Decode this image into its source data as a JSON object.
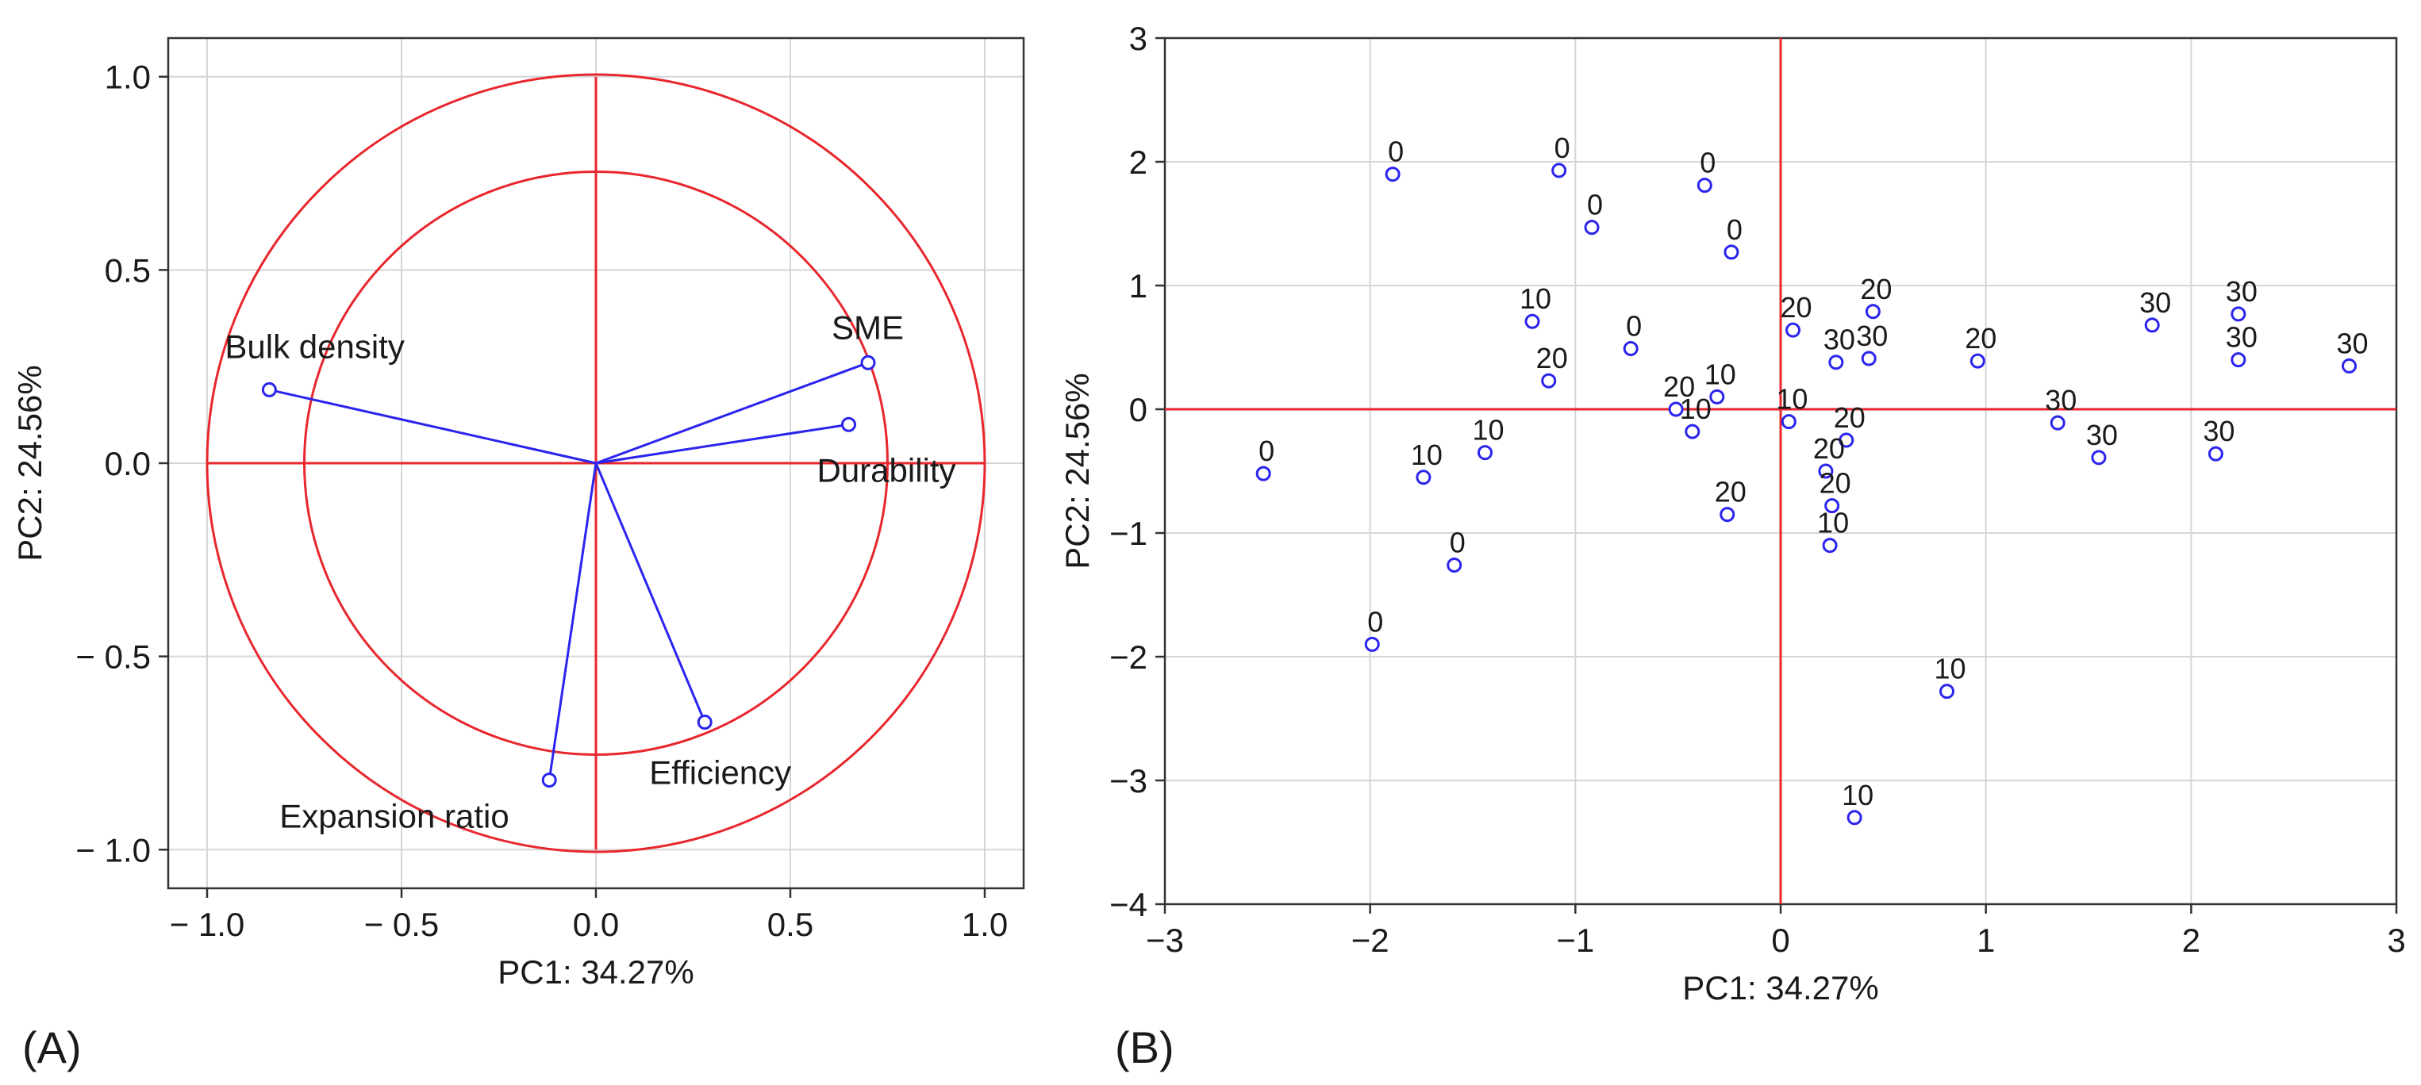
{
  "colors": {
    "reference": "#e8262d",
    "data": "#2b24ee",
    "grid": "#d6d6d6",
    "frame": "#333333"
  },
  "panel_labels": [
    "(A)",
    "(B)"
  ],
  "chart_data": [
    {
      "type": "scatter",
      "subtype": "pca-correlation-circle",
      "panel": "(A)",
      "xlabel": "PC1: 34.27%",
      "ylabel": "PC2: 24.56%",
      "xlim": [
        -1.1,
        1.1
      ],
      "ylim": [
        -1.1,
        1.1
      ],
      "x_ticks": [
        -1.0,
        -0.5,
        0.0,
        0.5,
        1.0
      ],
      "y_ticks": [
        -1.0,
        -0.5,
        0.0,
        0.5,
        1.0
      ],
      "x_tick_labels": [
        "− 1.0",
        "− 0.5",
        "0.0",
        "0.5",
        "1.0"
      ],
      "y_tick_labels": [
        "− 1.0",
        "− 0.5",
        "0.0",
        "0.5",
        "1.0"
      ],
      "grid": true,
      "circles": [
        1.0,
        0.75
      ],
      "variables": [
        {
          "name": "Bulk density",
          "x": -0.84,
          "y": 0.19
        },
        {
          "name": "SME",
          "x": 0.7,
          "y": 0.26
        },
        {
          "name": "Durability",
          "x": 0.65,
          "y": 0.1
        },
        {
          "name": "Efficiency",
          "x": 0.28,
          "y": -0.67
        },
        {
          "name": "Expansion ratio",
          "x": -0.12,
          "y": -0.82
        }
      ]
    },
    {
      "type": "scatter",
      "subtype": "pca-score-plot",
      "panel": "(B)",
      "xlabel": "PC1: 34.27%",
      "ylabel": "PC2: 24.56%",
      "xlim": [
        -3,
        3
      ],
      "ylim": [
        -4,
        3
      ],
      "x_ticks": [
        -3,
        -2,
        -1,
        0,
        1,
        2,
        3
      ],
      "y_ticks": [
        -4,
        -3,
        -2,
        -1,
        0,
        1,
        2,
        3
      ],
      "x_tick_labels": [
        "−3",
        "−2",
        "−1",
        "0",
        "1",
        "2",
        "3"
      ],
      "y_tick_labels": [
        "−4",
        "−3",
        "−2",
        "−1",
        "0",
        "1",
        "2",
        "3"
      ],
      "grid": true,
      "points": [
        {
          "x": -1.89,
          "y": 1.9,
          "label": "0"
        },
        {
          "x": -1.08,
          "y": 1.93,
          "label": "0"
        },
        {
          "x": -0.92,
          "y": 1.47,
          "label": "0"
        },
        {
          "x": -0.37,
          "y": 1.81,
          "label": "0"
        },
        {
          "x": -0.24,
          "y": 1.27,
          "label": "0"
        },
        {
          "x": -0.73,
          "y": 0.49,
          "label": "0"
        },
        {
          "x": -2.52,
          "y": -0.52,
          "label": "0"
        },
        {
          "x": -1.59,
          "y": -1.26,
          "label": "0"
        },
        {
          "x": -1.99,
          "y": -1.9,
          "label": "0"
        },
        {
          "x": -1.21,
          "y": 0.71,
          "label": "10"
        },
        {
          "x": -0.31,
          "y": 0.1,
          "label": "10"
        },
        {
          "x": -0.43,
          "y": -0.18,
          "label": "10"
        },
        {
          "x": 0.04,
          "y": -0.1,
          "label": "10"
        },
        {
          "x": -1.44,
          "y": -0.35,
          "label": "10"
        },
        {
          "x": -1.74,
          "y": -0.55,
          "label": "10"
        },
        {
          "x": 0.24,
          "y": -1.1,
          "label": "10"
        },
        {
          "x": 0.81,
          "y": -2.28,
          "label": "10"
        },
        {
          "x": 0.36,
          "y": -3.3,
          "label": "10"
        },
        {
          "x": -1.13,
          "y": 0.23,
          "label": "20"
        },
        {
          "x": -0.51,
          "y": 0.0,
          "label": "20"
        },
        {
          "x": 0.06,
          "y": 0.64,
          "label": "20"
        },
        {
          "x": 0.45,
          "y": 0.79,
          "label": "20"
        },
        {
          "x": 0.96,
          "y": 0.39,
          "label": "20"
        },
        {
          "x": 0.32,
          "y": -0.25,
          "label": "20"
        },
        {
          "x": 0.22,
          "y": -0.5,
          "label": "20"
        },
        {
          "x": 0.25,
          "y": -0.78,
          "label": "20"
        },
        {
          "x": -0.26,
          "y": -0.85,
          "label": "20"
        },
        {
          "x": 0.27,
          "y": 0.38,
          "label": "30"
        },
        {
          "x": 0.43,
          "y": 0.41,
          "label": "30"
        },
        {
          "x": 1.81,
          "y": 0.68,
          "label": "30"
        },
        {
          "x": 2.23,
          "y": 0.77,
          "label": "30"
        },
        {
          "x": 2.23,
          "y": 0.4,
          "label": "30"
        },
        {
          "x": 2.77,
          "y": 0.35,
          "label": "30"
        },
        {
          "x": 1.35,
          "y": -0.11,
          "label": "30"
        },
        {
          "x": 1.55,
          "y": -0.39,
          "label": "30"
        },
        {
          "x": 2.12,
          "y": -0.36,
          "label": "30"
        }
      ]
    }
  ]
}
